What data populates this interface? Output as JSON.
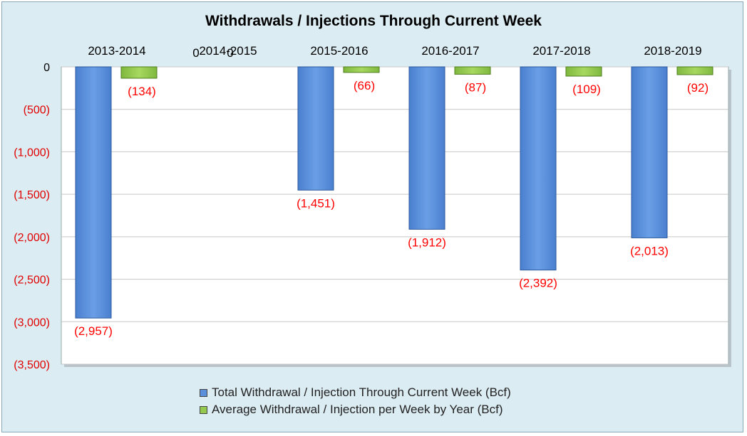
{
  "chart_data": {
    "type": "bar",
    "title": "Withdrawals / Injections Through Current Week",
    "categories": [
      "2013-2014",
      "2014-2015",
      "2015-2016",
      "2016-2017",
      "2017-2018",
      "2018-2019"
    ],
    "series": [
      {
        "name": "Total Withdrawal / Injection Through Current Week (Bcf)",
        "values": [
          -2957,
          0,
          -1451,
          -1912,
          -2392,
          -2013
        ],
        "data_labels": [
          "(2,957)",
          "0",
          "(1,451)",
          "(1,912)",
          "(2,392)",
          "(2,013)"
        ],
        "color": "#5b8fdc"
      },
      {
        "name": "Average Withdrawal / Injection per Week by Year (Bcf)",
        "values": [
          -134,
          0,
          -66,
          -87,
          -109,
          -92
        ],
        "data_labels": [
          "(134)",
          "0",
          "(66)",
          "(87)",
          "(109)",
          "(92)"
        ],
        "color": "#92c94e"
      }
    ],
    "ylim": [
      -3500,
      0
    ],
    "y_ticks": [
      0,
      -500,
      -1000,
      -1500,
      -2000,
      -2500,
      -3000,
      -3500
    ],
    "y_tick_labels": [
      "0",
      "(500)",
      "(1,000)",
      "(1,500)",
      "(2,000)",
      "(2,500)",
      "(3,000)",
      "(3,500)"
    ],
    "grid": true,
    "legend_position": "bottom",
    "category_axis_position": "top",
    "label_color": "#ff0000",
    "plot_background": "#ffffff",
    "chart_background": "#dcecf3"
  }
}
